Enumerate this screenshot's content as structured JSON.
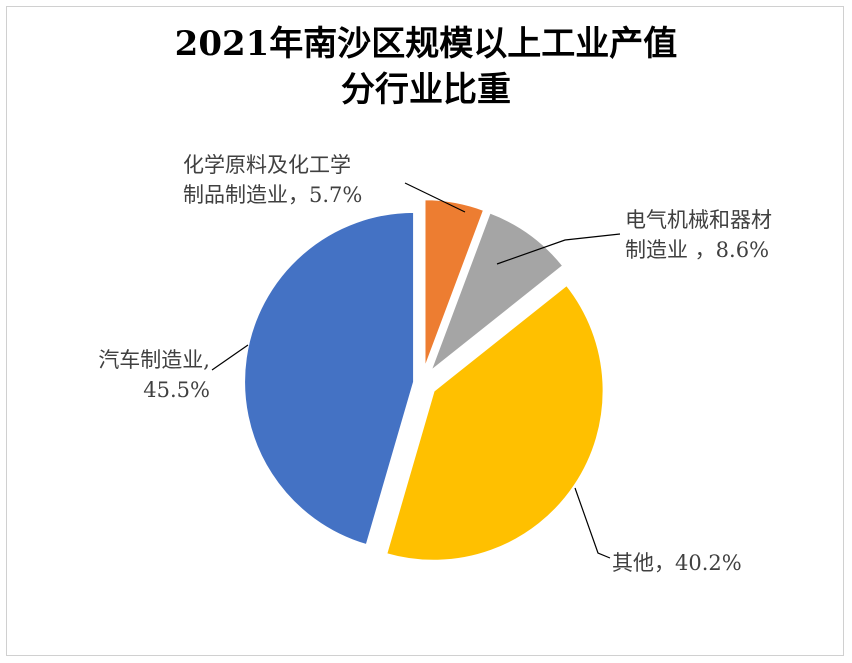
{
  "chart_data": {
    "type": "pie",
    "title_lines": [
      "2021年南沙区规模以上工业产值",
      "分行业比重"
    ],
    "slices": [
      {
        "label_lines": [
          "化学原料及化工学",
          "制品制造业，5.7%"
        ],
        "name": "化学原料及化工学制品制造业",
        "value": 5.7,
        "color": "#ED7D31"
      },
      {
        "label_lines": [
          "电气机械和器材",
          "制造业 ，8.6%"
        ],
        "name": "电气机械和器材制造业",
        "value": 8.6,
        "color": "#A5A5A5"
      },
      {
        "label_lines": [
          "其他，40.2%"
        ],
        "name": "其他",
        "value": 40.2,
        "color": "#FFC000"
      },
      {
        "label_lines": [
          "汽车制造业,",
          "45.5%"
        ],
        "name": "汽车制造业",
        "value": 45.5,
        "color": "#4472C4"
      }
    ],
    "start_angle_deg": 0,
    "direction": "clockwise",
    "exploded": true,
    "legend": "none"
  }
}
